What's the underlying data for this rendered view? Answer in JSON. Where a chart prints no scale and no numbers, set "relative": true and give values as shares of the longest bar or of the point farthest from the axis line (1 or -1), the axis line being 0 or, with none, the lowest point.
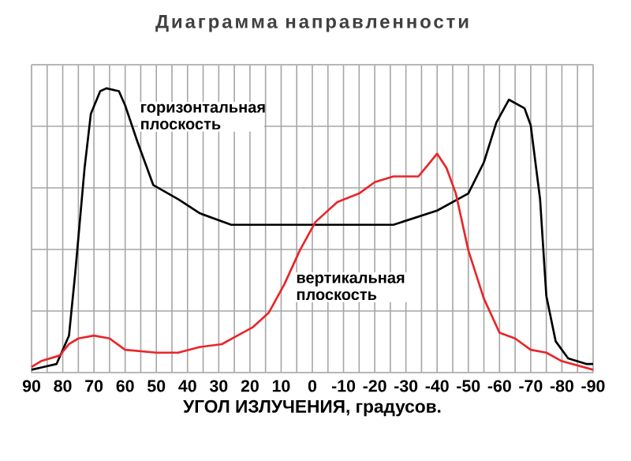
{
  "chart_data": {
    "type": "line",
    "title": "Диаграмма направленности",
    "xlabel": "УГОЛ ИЗЛУЧЕНИЯ, градусов.",
    "relative": true,
    "grid": true,
    "marker": "none",
    "line_style": "solid",
    "xlim": [
      90,
      -90
    ],
    "xticks": [
      90,
      80,
      70,
      60,
      50,
      40,
      30,
      20,
      10,
      0,
      -10,
      -20,
      -30,
      -40,
      -50,
      -60,
      -70,
      -80,
      -90
    ],
    "series": [
      {
        "name": "горизонтальная плоскость",
        "color": "#000000",
        "x": [
          90,
          86,
          82,
          78,
          76,
          73,
          71,
          68,
          66,
          62,
          60,
          56,
          51,
          43,
          36,
          26,
          0,
          -26,
          -40,
          -50,
          -55,
          -59,
          -63,
          -68,
          -70,
          -73,
          -75,
          -78,
          -82,
          -88,
          -90
        ],
        "values": [
          0.01,
          0.02,
          0.03,
          0.13,
          0.35,
          0.72,
          0.91,
          0.99,
          1.0,
          0.99,
          0.94,
          0.81,
          0.66,
          0.61,
          0.56,
          0.52,
          0.52,
          0.52,
          0.57,
          0.63,
          0.74,
          0.88,
          0.96,
          0.93,
          0.87,
          0.61,
          0.27,
          0.11,
          0.05,
          0.03,
          0.03
        ]
      },
      {
        "name": "вертикальная плоскость",
        "color": "#e8262a",
        "x": [
          90,
          87,
          81,
          78,
          75,
          70,
          65,
          60,
          50,
          43,
          36,
          29,
          24,
          19,
          14,
          9,
          4,
          -1,
          -8,
          -15,
          -20,
          -26,
          -34,
          -37,
          -40,
          -43,
          -46,
          -50,
          -55,
          -60,
          -65,
          -70,
          -75,
          -80,
          -90
        ],
        "values": [
          0.02,
          0.04,
          0.06,
          0.1,
          0.12,
          0.13,
          0.12,
          0.08,
          0.07,
          0.07,
          0.09,
          0.1,
          0.13,
          0.16,
          0.21,
          0.31,
          0.43,
          0.53,
          0.6,
          0.63,
          0.67,
          0.69,
          0.69,
          0.73,
          0.77,
          0.72,
          0.63,
          0.43,
          0.26,
          0.14,
          0.12,
          0.08,
          0.07,
          0.04,
          0.01
        ]
      }
    ]
  }
}
